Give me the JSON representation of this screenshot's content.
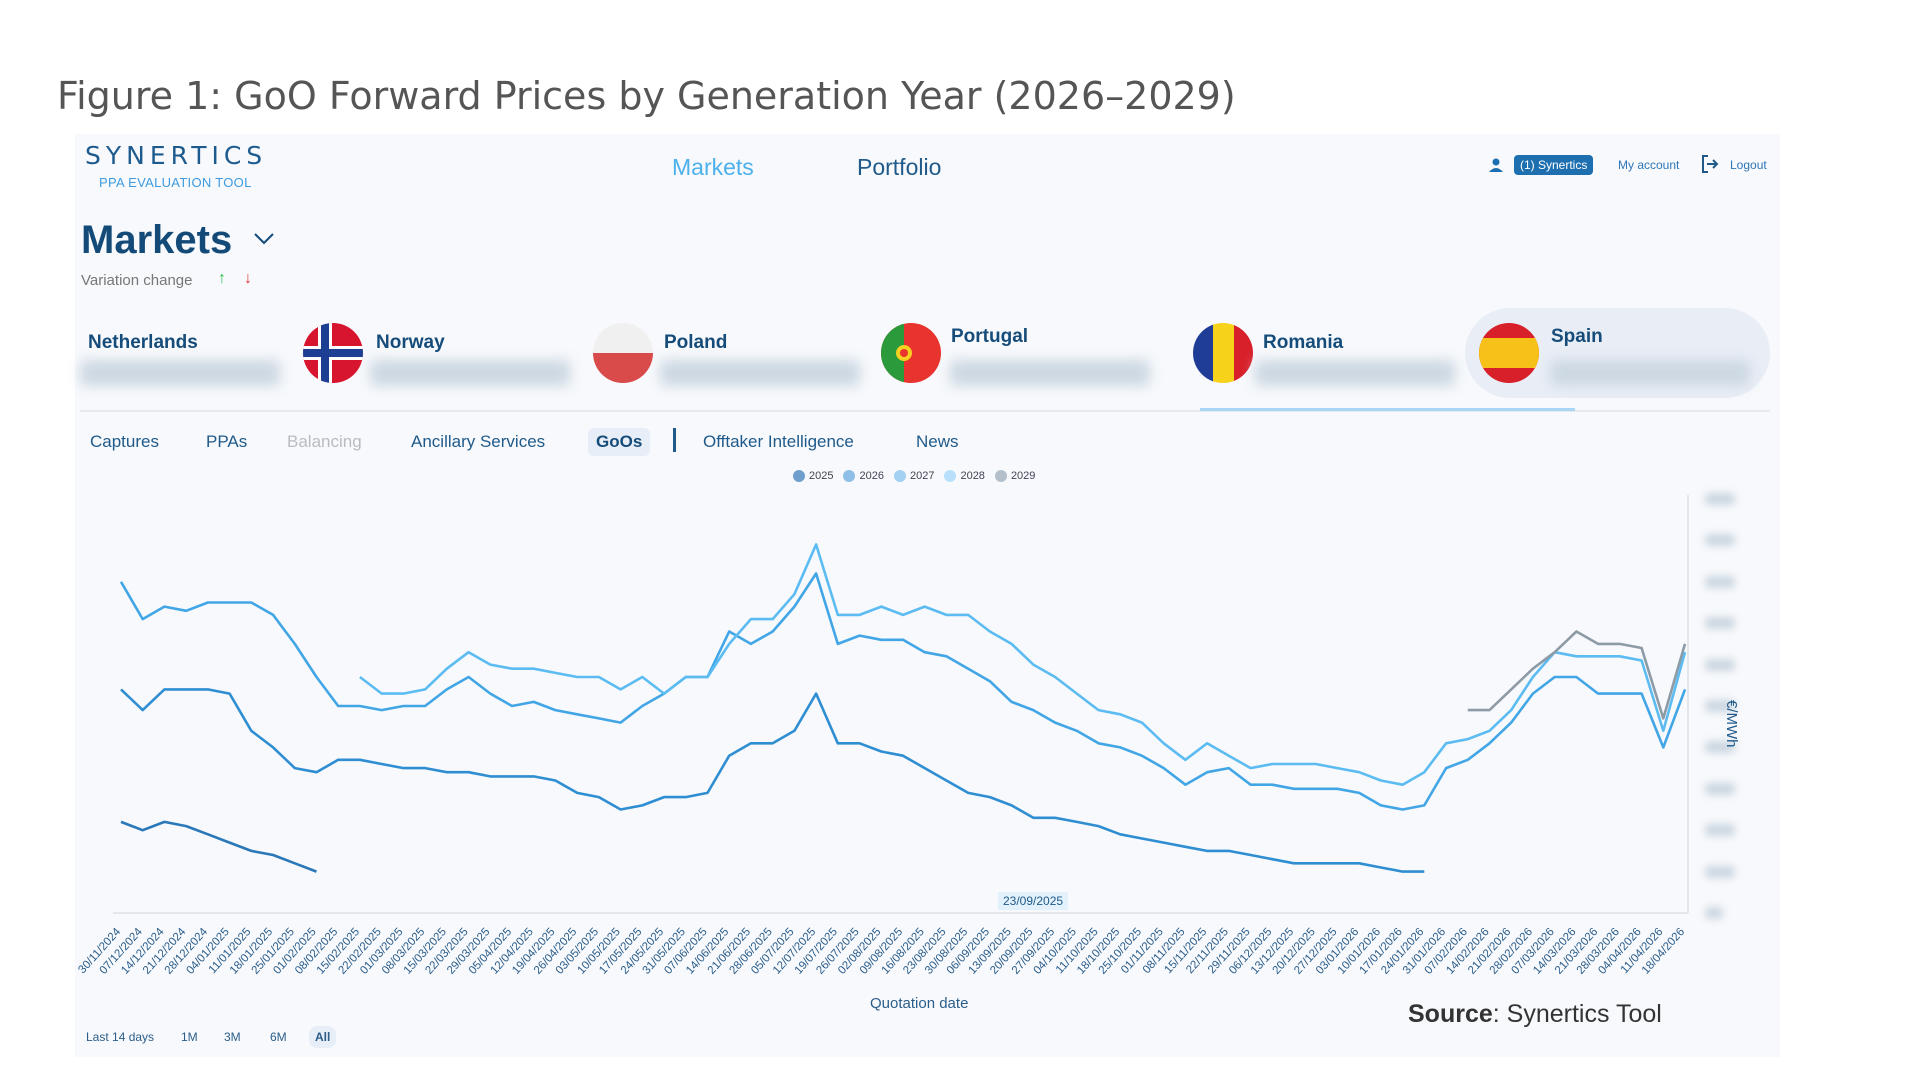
{
  "figure_title": "Figure 1: GoO Forward Prices by Generation Year (2026–2029)",
  "header": {
    "logo": "SYNERTICS",
    "logo_subtitle": "PPA EVALUATION TOOL",
    "nav": [
      "Markets",
      "Portfolio"
    ],
    "account_badge": "(1) Synertics",
    "my_account": "My account",
    "logout": "Logout"
  },
  "page": {
    "title": "Markets",
    "variation_label": "Variation change",
    "up_arrow": "↑",
    "down_arrow": "↓"
  },
  "countries": [
    "Netherlands",
    "Norway",
    "Poland",
    "Portugal",
    "Romania",
    "Spain"
  ],
  "tabs": [
    "Captures",
    "PPAs",
    "Balancing",
    "Ancillary Services",
    "GoOs",
    "Offtaker Intelligence",
    "News"
  ],
  "ranges": [
    "Last 14 days",
    "1M",
    "3M",
    "6M",
    "All"
  ],
  "crosshair_date": "23/09/2025",
  "source_label": "Source",
  "source_value": ": Synertics Tool",
  "colors": {
    "accent": "#1d6fb0",
    "navy": "#134a78"
  },
  "chart_data": {
    "type": "line",
    "xlabel": "Quotation date",
    "ylabel": "€/MWh",
    "ylim": [
      0,
      10
    ],
    "y_ticks_blurred": true,
    "grid": false,
    "legend_position": "top-center",
    "x": [
      "30/11/2024",
      "07/12/2024",
      "14/12/2024",
      "21/12/2024",
      "28/12/2024",
      "04/01/2025",
      "11/01/2025",
      "18/01/2025",
      "25/01/2025",
      "01/02/2025",
      "08/02/2025",
      "15/02/2025",
      "22/02/2025",
      "01/03/2025",
      "08/03/2025",
      "15/03/2025",
      "22/03/2025",
      "29/03/2025",
      "05/04/2025",
      "12/04/2025",
      "19/04/2025",
      "26/04/2025",
      "03/05/2025",
      "10/05/2025",
      "17/05/2025",
      "24/05/2025",
      "31/05/2025",
      "07/06/2025",
      "14/06/2025",
      "21/06/2025",
      "28/06/2025",
      "05/07/2025",
      "12/07/2025",
      "19/07/2025",
      "26/07/2025",
      "02/08/2025",
      "09/08/2025",
      "16/08/2025",
      "23/08/2025",
      "30/08/2025",
      "06/09/2025",
      "13/09/2025",
      "20/09/2025",
      "27/09/2025",
      "04/10/2025",
      "11/10/2025",
      "18/10/2025",
      "25/10/2025",
      "01/11/2025",
      "08/11/2025",
      "15/11/2025",
      "22/11/2025",
      "29/11/2025",
      "06/12/2025",
      "13/12/2025",
      "20/12/2025",
      "27/12/2025",
      "03/01/2026",
      "10/01/2026",
      "17/01/2026",
      "24/01/2026",
      "31/01/2026",
      "07/02/2026",
      "14/02/2026",
      "21/02/2026",
      "28/02/2026",
      "07/03/2026",
      "14/03/2026",
      "21/03/2026",
      "28/03/2026",
      "04/04/2026",
      "11/04/2026",
      "18/04/2026"
    ],
    "series": [
      {
        "name": "2025",
        "color": "#2a78b8",
        "values": [
          2.2,
          2.0,
          2.2,
          2.1,
          1.9,
          1.7,
          1.5,
          1.4,
          1.2,
          1.0,
          null,
          null,
          null,
          null,
          null,
          null,
          null,
          null,
          null,
          null,
          null,
          null,
          null,
          null,
          null,
          null,
          null,
          null,
          null,
          null,
          null,
          null,
          null,
          null,
          null,
          null,
          null,
          null,
          null,
          null,
          null,
          null,
          null,
          null,
          null,
          null,
          null,
          null,
          null,
          null,
          null,
          null,
          null,
          null,
          null,
          null,
          null,
          null,
          null,
          null,
          null,
          null,
          null,
          null,
          null,
          null,
          null,
          null,
          null,
          null,
          null,
          null,
          null
        ]
      },
      {
        "name": "2026",
        "color": "#2f8ed2",
        "values": [
          5.4,
          4.9,
          5.4,
          5.4,
          5.4,
          5.3,
          4.4,
          4.0,
          3.5,
          3.4,
          3.7,
          3.7,
          3.6,
          3.5,
          3.5,
          3.4,
          3.4,
          3.3,
          3.3,
          3.3,
          3.2,
          2.9,
          2.8,
          2.5,
          2.6,
          2.8,
          2.8,
          2.9,
          3.8,
          4.1,
          4.1,
          4.4,
          5.3,
          4.1,
          4.1,
          3.9,
          3.8,
          3.5,
          3.2,
          2.9,
          2.8,
          2.6,
          2.3,
          2.3,
          2.2,
          2.1,
          1.9,
          1.8,
          1.7,
          1.6,
          1.5,
          1.5,
          1.4,
          1.3,
          1.2,
          1.2,
          1.2,
          1.2,
          1.1,
          1.0,
          1.0,
          null,
          null,
          null,
          null,
          null,
          null,
          null,
          null,
          null,
          null,
          null,
          null
        ]
      },
      {
        "name": "2027",
        "color": "#42a6e6",
        "values": [
          8.0,
          7.1,
          7.4,
          7.3,
          7.5,
          7.5,
          7.5,
          7.2,
          6.5,
          5.7,
          5.0,
          5.0,
          4.9,
          5.0,
          5.0,
          5.4,
          5.7,
          5.3,
          5.0,
          5.1,
          4.9,
          4.8,
          4.7,
          4.6,
          5.0,
          5.3,
          5.7,
          5.7,
          6.8,
          6.5,
          6.8,
          7.4,
          8.2,
          6.5,
          6.7,
          6.6,
          6.6,
          6.3,
          6.2,
          5.9,
          5.6,
          5.1,
          4.9,
          4.6,
          4.4,
          4.1,
          4.0,
          3.8,
          3.5,
          3.1,
          3.4,
          3.5,
          3.1,
          3.1,
          3.0,
          3.0,
          3.0,
          2.9,
          2.6,
          2.5,
          2.6,
          3.5,
          3.7,
          4.1,
          4.6,
          5.3,
          5.7,
          5.7,
          5.3,
          5.3,
          5.3,
          4.0,
          5.4
        ]
      },
      {
        "name": "2028",
        "color": "#5cbcf2",
        "values": [
          null,
          null,
          null,
          null,
          null,
          null,
          null,
          null,
          null,
          null,
          null,
          5.7,
          5.3,
          5.3,
          5.4,
          5.9,
          6.3,
          6.0,
          5.9,
          5.9,
          5.8,
          5.7,
          5.7,
          5.4,
          5.7,
          5.3,
          5.7,
          5.7,
          6.5,
          7.1,
          7.1,
          7.7,
          8.9,
          7.2,
          7.2,
          7.4,
          7.2,
          7.4,
          7.2,
          7.2,
          6.8,
          6.5,
          6.0,
          5.7,
          5.3,
          4.9,
          4.8,
          4.6,
          4.1,
          3.7,
          4.1,
          3.8,
          3.5,
          3.6,
          3.6,
          3.6,
          3.5,
          3.4,
          3.2,
          3.1,
          3.4,
          4.1,
          4.2,
          4.4,
          4.9,
          5.7,
          6.3,
          6.2,
          6.2,
          6.2,
          6.1,
          4.4,
          6.3
        ]
      },
      {
        "name": "2029",
        "color": "#8d9ba7",
        "values": [
          null,
          null,
          null,
          null,
          null,
          null,
          null,
          null,
          null,
          null,
          null,
          null,
          null,
          null,
          null,
          null,
          null,
          null,
          null,
          null,
          null,
          null,
          null,
          null,
          null,
          null,
          null,
          null,
          null,
          null,
          null,
          null,
          null,
          null,
          null,
          null,
          null,
          null,
          null,
          null,
          null,
          null,
          null,
          null,
          null,
          null,
          null,
          null,
          null,
          null,
          null,
          null,
          null,
          null,
          null,
          null,
          null,
          null,
          null,
          null,
          null,
          null,
          4.9,
          4.9,
          5.4,
          5.9,
          6.3,
          6.8,
          6.5,
          6.5,
          6.4,
          4.7,
          6.5
        ]
      }
    ]
  }
}
